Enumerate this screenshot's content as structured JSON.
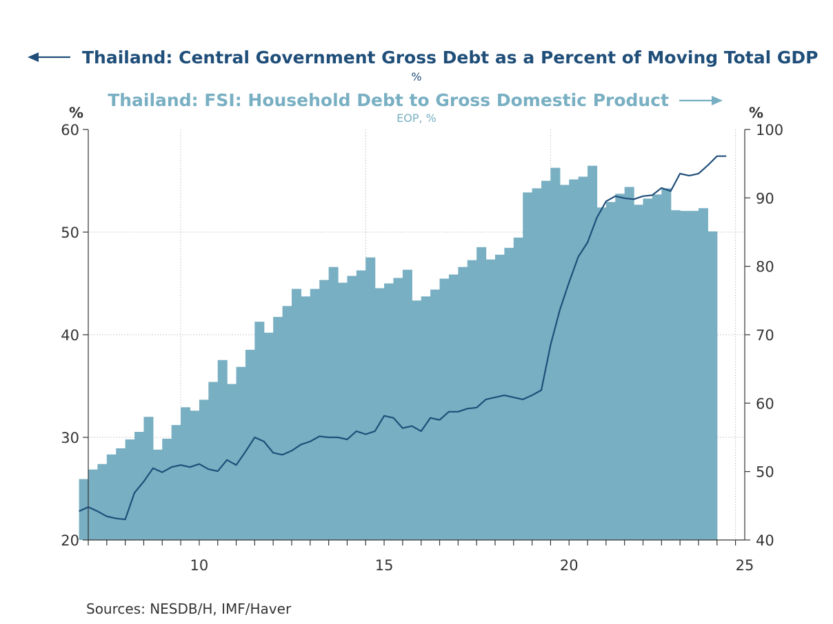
{
  "colors": {
    "left_series": "#1f4e79",
    "right_series": "#78afc2",
    "axis": "#333333",
    "grid": "#cccccc"
  },
  "chart_data": {
    "type": "bar",
    "left_title": "Thailand: Central Government Gross Debt as a Percent of Moving Total GDP",
    "left_subtitle": "%",
    "right_title": "Thailand: FSI: Household Debt to Gross Domestic Product",
    "right_subtitle": "EOP, %",
    "left_unit": "%",
    "right_unit": "%",
    "source": "Sources:  NESDB/H, IMF/Haver",
    "x_ticks": [
      {
        "value": 2010,
        "label": "10"
      },
      {
        "value": 2015,
        "label": "15"
      },
      {
        "value": 2020,
        "label": "20"
      },
      {
        "value": 2025,
        "label": "25"
      }
    ],
    "x_range": [
      2007.5,
      2025.25
    ],
    "y_left": {
      "range": [
        20,
        60
      ],
      "ticks": [
        20,
        30,
        40,
        50,
        60
      ]
    },
    "y_right": {
      "range": [
        40,
        100
      ],
      "ticks": [
        40,
        50,
        60,
        70,
        80,
        90,
        100
      ]
    },
    "grid": true,
    "series": [
      {
        "name": "Thailand: FSI: Household Debt to Gross Domestic Product",
        "axis": "right",
        "style": "bar",
        "start_quarter": "2007-Q2",
        "values": [
          48.9,
          50.3,
          51.1,
          52.5,
          53.4,
          54.7,
          55.8,
          58.0,
          53.2,
          54.8,
          56.8,
          59.4,
          58.9,
          60.5,
          63.1,
          66.3,
          62.8,
          65.3,
          67.8,
          71.9,
          70.3,
          72.6,
          74.2,
          76.7,
          75.6,
          76.7,
          78.0,
          79.9,
          77.6,
          78.6,
          79.4,
          81.3,
          76.8,
          77.5,
          78.3,
          79.5,
          75.0,
          75.6,
          76.6,
          78.2,
          78.8,
          79.9,
          80.9,
          82.8,
          81.0,
          81.7,
          82.7,
          84.2,
          90.8,
          91.4,
          92.5,
          94.4,
          91.9,
          92.7,
          93.1,
          94.7,
          88.6,
          89.4,
          90.6,
          91.6,
          89.0,
          89.9,
          90.5,
          91.4,
          88.2,
          88.1,
          88.1,
          88.5,
          85.1
        ]
      },
      {
        "name": "Thailand: Central Government Gross Debt as a Percent of Moving Total GDP",
        "axis": "left",
        "style": "line",
        "start_quarter": "2007-Q2",
        "values": [
          22.8,
          23.2,
          22.8,
          22.3,
          22.1,
          22.0,
          24.6,
          25.7,
          27.0,
          26.6,
          27.1,
          27.3,
          27.1,
          27.4,
          26.9,
          26.7,
          27.8,
          27.3,
          28.6,
          30.0,
          29.6,
          28.5,
          28.3,
          28.7,
          29.3,
          29.6,
          30.1,
          30.0,
          30.0,
          29.8,
          30.6,
          30.3,
          30.6,
          32.1,
          31.9,
          30.9,
          31.1,
          30.6,
          31.9,
          31.7,
          32.5,
          32.5,
          32.8,
          32.9,
          33.7,
          33.9,
          34.1,
          33.9,
          33.7,
          34.1,
          34.6,
          39.0,
          42.4,
          45.1,
          47.6,
          49.0,
          51.4,
          53.0,
          53.5,
          53.3,
          53.2,
          53.5,
          53.6,
          54.3,
          54.0,
          55.7,
          55.5,
          55.7,
          56.5,
          57.4,
          57.4
        ]
      }
    ]
  }
}
